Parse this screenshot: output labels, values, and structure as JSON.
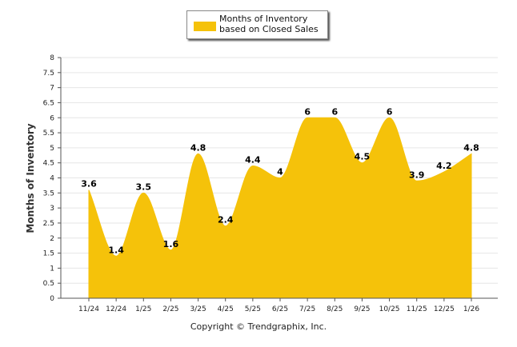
{
  "legend": {
    "label": "Months of Inventory based on Closed Sales"
  },
  "copyright": "Copyright © Trendgraphix, Inc.",
  "chart_data": {
    "type": "area",
    "ylabel": "Months of Inventory",
    "ylim": [
      0,
      8
    ],
    "ytick_step": 0.5,
    "y_ticks": [
      "0",
      "0.5",
      "1",
      "1.5",
      "2",
      "2.5",
      "3",
      "3.5",
      "4",
      "4.5",
      "5",
      "5.5",
      "6",
      "6.5",
      "7",
      "7.5",
      "8"
    ],
    "grid": true,
    "legend_position": "top-center",
    "fill_color": "#f5c20a",
    "categories": [
      "11/24",
      "12/24",
      "1/25",
      "2/25",
      "3/25",
      "4/25",
      "5/25",
      "6/25",
      "7/25",
      "8/25",
      "9/25",
      "10/25",
      "11/25",
      "12/25",
      "1/26"
    ],
    "series": [
      {
        "name": "Months of Inventory based on Closed Sales",
        "values": [
          3.6,
          1.4,
          3.5,
          1.6,
          4.8,
          2.4,
          4.4,
          4,
          6,
          6,
          4.5,
          6,
          3.9,
          4.2,
          4.8
        ],
        "labels": [
          "3.6",
          "1.4",
          "3.5",
          "1.6",
          "4.8",
          "2.4",
          "4.4",
          "4",
          "6",
          "6",
          "4.5",
          "6",
          "3.9",
          "4.2",
          "4.8"
        ]
      }
    ]
  }
}
